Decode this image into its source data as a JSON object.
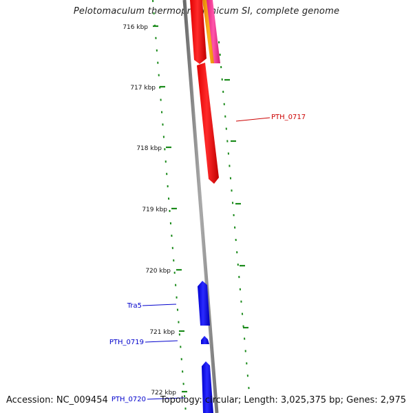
{
  "title": "Pelotomaculum thermopropionicum SI, complete genome",
  "footer": {
    "accession": "Accession: NC_009454",
    "summary": "Topology: circular; Length: 3,025,375 bp; Genes: 2,975"
  },
  "ticks": [
    {
      "label": "716 kbp"
    },
    {
      "label": "717 kbp"
    },
    {
      "label": "718 kbp"
    },
    {
      "label": "719 kbp"
    },
    {
      "label": "720 kbp"
    },
    {
      "label": "721 kbp"
    },
    {
      "label": "722 kbp"
    }
  ],
  "genes": [
    {
      "name": "PTH_0717",
      "color": "#cc0000"
    },
    {
      "name": "Tra5",
      "color": "#0000cc"
    },
    {
      "name": "PTH_0719",
      "color": "#0000cc"
    },
    {
      "name": "PTH_0720",
      "color": "#0000cc"
    }
  ],
  "colors": {
    "backbone": "#888888",
    "forward_gene": "#ff1a1a",
    "reverse_gene": "#1a1aff",
    "tick_marks": "#1a8a1a",
    "orange_feature": "#ff9900",
    "pink_feature": "#ff3399"
  }
}
